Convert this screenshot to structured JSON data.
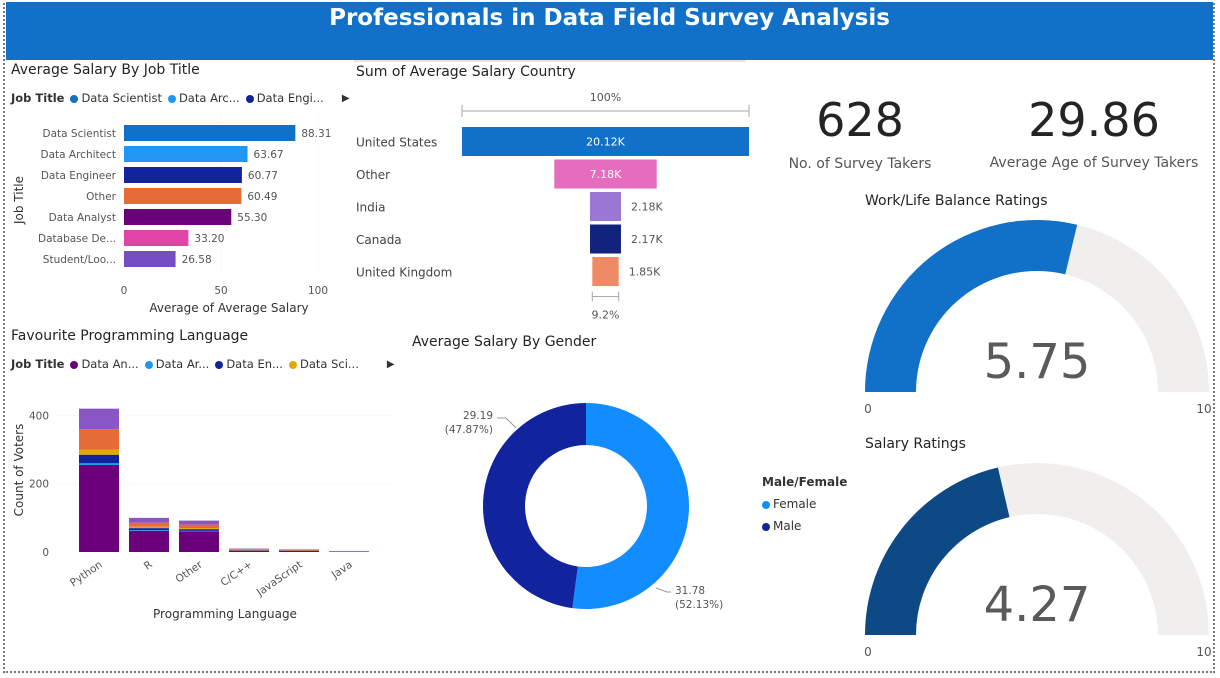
{
  "banner": {
    "title": "Professionals in Data Field Survey Analysis",
    "color": "#1170c8"
  },
  "job_salary": {
    "title": "Average Salary By Job Title",
    "legend": {
      "label": "Job Title",
      "items": [
        {
          "name": "Data Scientist",
          "color": "#1170c8"
        },
        {
          "name": "Data Arc...",
          "color": "#2196f3"
        },
        {
          "name": "Data Engi...",
          "color": "#12239e"
        }
      ]
    }
  },
  "country_salary": {
    "title": "Sum of Average Salary Country"
  },
  "language": {
    "title": "Favourite Programming Language",
    "legend": {
      "label": "Job Title",
      "items": [
        {
          "name": "Data An...",
          "color": "#6b007b"
        },
        {
          "name": "Data Ar...",
          "color": "#2196f3"
        },
        {
          "name": "Data En...",
          "color": "#12239e"
        },
        {
          "name": "Data Sci...",
          "color": "#e0a800"
        }
      ]
    }
  },
  "gender_salary": {
    "title": "Average Salary By Gender",
    "legend": {
      "label": "Male/Female",
      "items": [
        {
          "name": "Female",
          "color": "#118dff"
        },
        {
          "name": "Male",
          "color": "#12239e"
        }
      ]
    }
  },
  "kpis": [
    {
      "value": "628",
      "label": "No. of Survey Takers"
    },
    {
      "value": "29.86",
      "label": "Average Age of Survey Takers"
    }
  ],
  "worklife": {
    "title": "Work/Life Balance Ratings"
  },
  "salary_rating": {
    "title": "Salary Ratings"
  },
  "chart_data": [
    {
      "type": "bar",
      "orientation": "horizontal",
      "categories": [
        "Data Scientist",
        "Data Architect",
        "Data Engineer",
        "Other",
        "Data Analyst",
        "Database De...",
        "Student/Loo..."
      ],
      "values": [
        88.31,
        63.67,
        60.77,
        60.49,
        55.3,
        33.2,
        26.58
      ],
      "labels": [
        "88.31",
        "63.67",
        "60.77",
        "60.49",
        "55.30",
        "33.20",
        "26.58"
      ],
      "colors": [
        "#1170c8",
        "#2196f3",
        "#12239e",
        "#e66c37",
        "#6b007b",
        "#e044a7",
        "#744ec2"
      ],
      "xlabel": "Average of Average Salary",
      "ylabel": "Job Title",
      "xticks": [
        "0",
        "50",
        "100"
      ],
      "xlim": [
        0,
        100
      ]
    },
    {
      "type": "bar",
      "subtype": "funnel",
      "categories": [
        "United States",
        "Other",
        "India",
        "Canada",
        "United Kingdom"
      ],
      "values": [
        20120,
        7180,
        2180,
        2170,
        1850
      ],
      "labels": [
        "20.12K",
        "7.18K",
        "2.18K",
        "2.17K",
        "1.85K"
      ],
      "colors": [
        "#1170c8",
        "#e66cbf",
        "#9a78d4",
        "#12237e",
        "#ee8a64"
      ],
      "top_label": "100%",
      "bottom_label": "9.2%"
    },
    {
      "type": "bar",
      "subtype": "stacked",
      "categories": [
        "Python",
        "R",
        "Other",
        "C/C++",
        "JavaScript",
        "Java"
      ],
      "series": [
        {
          "name": "Data An...",
          "color": "#6b007b",
          "values": [
            255,
            62,
            60,
            4,
            3,
            1
          ]
        },
        {
          "name": "Data Ar...",
          "color": "#2196f3",
          "values": [
            5,
            2,
            2,
            0,
            0,
            0
          ]
        },
        {
          "name": "Data En...",
          "color": "#12239e",
          "values": [
            25,
            6,
            5,
            1,
            1,
            0
          ]
        },
        {
          "name": "Data Sci...",
          "color": "#e0a800",
          "values": [
            15,
            4,
            3,
            1,
            1,
            0
          ]
        },
        {
          "name": "",
          "color": "#e66c37",
          "values": [
            60,
            12,
            10,
            2,
            2,
            1
          ]
        },
        {
          "name": "",
          "color": "#8a56c4",
          "values": [
            60,
            14,
            12,
            2,
            1,
            1
          ]
        }
      ],
      "xlabel": "Programming Language",
      "ylabel": "Count of Voters",
      "yticks": [
        "0",
        "200",
        "400"
      ],
      "ylim": [
        0,
        460
      ]
    },
    {
      "type": "pie",
      "subtype": "donut",
      "categories": [
        "Female",
        "Male"
      ],
      "values": [
        31.78,
        29.19
      ],
      "percent_labels": [
        "(52.13%)",
        "(47.87%)"
      ],
      "value_labels": [
        "31.78",
        "29.19"
      ],
      "colors": [
        "#118dff",
        "#12239e"
      ]
    },
    {
      "type": "gauge",
      "title": "Work/Life Balance Ratings",
      "value": 5.75,
      "display": "5.75",
      "min": 0,
      "max": 10,
      "min_label": "0",
      "max_label": "10",
      "color": "#1170c8"
    },
    {
      "type": "gauge",
      "title": "Salary Ratings",
      "value": 4.27,
      "display": "4.27",
      "min": 0,
      "max": 10,
      "min_label": "0",
      "max_label": "10",
      "color": "#0d4a85"
    }
  ]
}
